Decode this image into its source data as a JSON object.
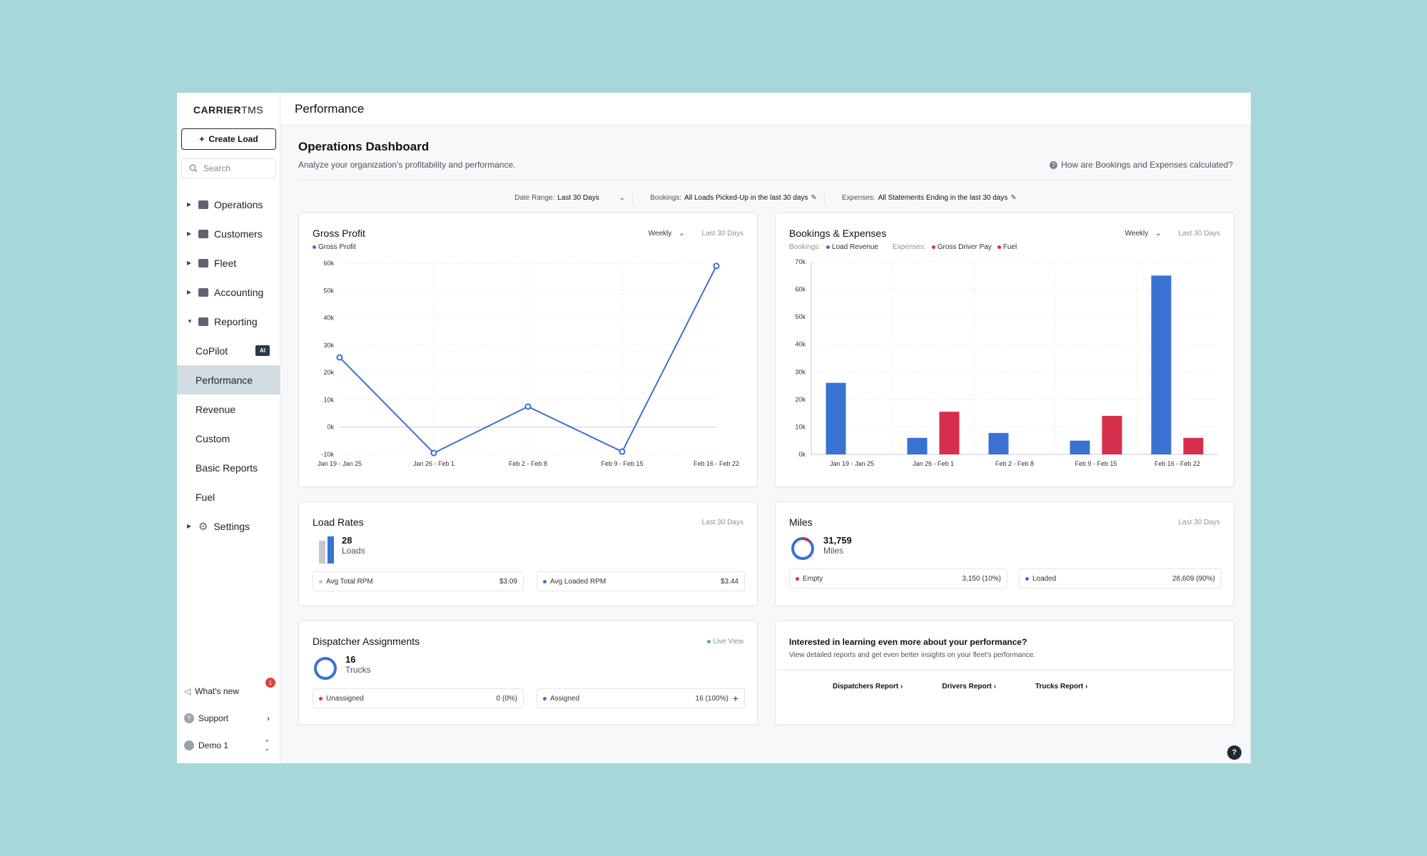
{
  "brand": {
    "bold": "CARRIER",
    "light": "TMS"
  },
  "sidebar": {
    "create_label": "Create Load",
    "search_placeholder": "Search",
    "items": [
      {
        "label": "Operations",
        "icon": "clipboard-icon"
      },
      {
        "label": "Customers",
        "icon": "users-icon"
      },
      {
        "label": "Fleet",
        "icon": "truck-icon"
      },
      {
        "label": "Accounting",
        "icon": "ledger-icon"
      },
      {
        "label": "Reporting",
        "icon": "chart-icon"
      }
    ],
    "sub_items": [
      {
        "label": "CoPilot",
        "badge": "AI"
      },
      {
        "label": "Performance"
      },
      {
        "label": "Revenue"
      },
      {
        "label": "Custom"
      },
      {
        "label": "Basic Reports"
      },
      {
        "label": "Fuel"
      }
    ],
    "settings_label": "Settings",
    "whats_new_label": "What's new",
    "whats_new_count": "1",
    "support_label": "Support",
    "user_label": "Demo 1"
  },
  "topbar": {
    "title": "Performance"
  },
  "dashboard": {
    "title": "Operations Dashboard",
    "subtitle": "Analyze your organization's profitability and performance.",
    "help_link": "How are Bookings and Expenses calculated?",
    "filters": {
      "date_range_label": "Date Range:",
      "date_range_value": "Last 30 Days",
      "bookings_label": "Bookings:",
      "bookings_value": "All Loads Picked-Up in the last 30 days",
      "expenses_label": "Expenses:",
      "expenses_value": "All Statements Ending in the last 30 days"
    }
  },
  "gross_profit": {
    "title": "Gross Profit",
    "interval": "Weekly",
    "range": "Last 30 Days",
    "legend": "Gross Profit"
  },
  "bookings": {
    "title": "Bookings & Expenses",
    "interval": "Weekly",
    "range": "Last 30 Days",
    "bookings_label": "Bookings:",
    "expenses_label": "Expenses:",
    "legend_revenue": "Load Revenue",
    "legend_driver": "Gross Driver Pay",
    "legend_fuel": "Fuel"
  },
  "chart_data": [
    {
      "type": "line",
      "title": "Gross Profit",
      "categories": [
        "Jan 19 - Jan 25",
        "Jan 26 - Feb 1",
        "Feb 2 - Feb 8",
        "Feb 9 - Feb 15",
        "Feb 16 - Feb 22"
      ],
      "series": [
        {
          "name": "Gross Profit",
          "values": [
            25500,
            -9500,
            7500,
            -9000,
            59000
          ]
        }
      ],
      "yticks": [
        "-10k",
        "0k",
        "10k",
        "20k",
        "30k",
        "40k",
        "50k",
        "60k"
      ],
      "ylim": [
        -10000,
        60000
      ],
      "color": "#3a72d4",
      "grid": true
    },
    {
      "type": "bar",
      "title": "Bookings & Expenses",
      "categories": [
        "Jan 19 - Jan 25",
        "Jan 26 - Feb 1",
        "Feb 2 - Feb 8",
        "Feb 9 - Feb 15",
        "Feb 16 - Feb 22"
      ],
      "series": [
        {
          "name": "Load Revenue",
          "color": "#3a72d4",
          "values": [
            26000,
            6000,
            7800,
            5000,
            65000
          ]
        },
        {
          "name": "Gross Driver Pay",
          "color": "#d62f4b",
          "values": [
            0,
            15500,
            0,
            14000,
            6000
          ]
        },
        {
          "name": "Fuel",
          "color": "#d62f4b",
          "values": [
            0,
            0,
            0,
            0,
            0
          ]
        }
      ],
      "yticks": [
        "0k",
        "10k",
        "20k",
        "30k",
        "40k",
        "50k",
        "60k",
        "70k"
      ],
      "ylim": [
        0,
        70000
      ],
      "grid": true
    }
  ],
  "load_rates": {
    "title": "Load Rates",
    "range": "Last 30 Days",
    "count": "28",
    "unit": "Loads",
    "avg_total_label": "Avg Total RPM",
    "avg_total_value": "$3.09",
    "avg_loaded_label": "Avg Loaded RPM",
    "avg_loaded_value": "$3.44"
  },
  "miles": {
    "title": "Miles",
    "range": "Last 30 Days",
    "total": "31,759",
    "unit": "Miles",
    "empty_label": "Empty",
    "empty_value": "3,150 (10%)",
    "loaded_label": "Loaded",
    "loaded_value": "28,609 (90%)",
    "empty_fraction": 0.1
  },
  "dispatcher": {
    "title": "Dispatcher Assignments",
    "live_label": "Live View",
    "count": "16",
    "unit": "Trucks",
    "unassigned_label": "Unassigned",
    "unassigned_value": "0 (0%)",
    "assigned_label": "Assigned",
    "assigned_value": "16 (100%)"
  },
  "cta": {
    "title": "Interested in learning even more about your performance?",
    "subtitle": "View detailed reports and get even better insights on your fleet's performance.",
    "links": [
      "Dispatchers Report",
      "Drivers Report",
      "Trucks Report"
    ]
  },
  "colors": {
    "blue": "#3a72d4",
    "red": "#d62f4b",
    "green": "#48bb78",
    "gray": "#c4c8cc"
  }
}
